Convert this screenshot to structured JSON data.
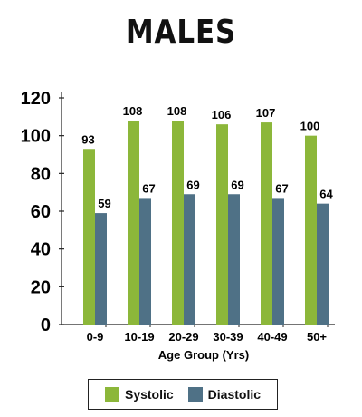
{
  "chart_data": {
    "type": "bar",
    "title": "MALES",
    "xlabel": "Age Group (Yrs)",
    "ylabel": "",
    "ylim": [
      0,
      120
    ],
    "yticks": [
      0,
      20,
      40,
      60,
      80,
      100,
      120
    ],
    "categories": [
      "0-9",
      "10-19",
      "20-29",
      "30-39",
      "40-49",
      "50+"
    ],
    "series": [
      {
        "name": "Systolic",
        "color": "#8cb73a",
        "values": [
          93,
          108,
          108,
          106,
          107,
          100
        ]
      },
      {
        "name": "Diastolic",
        "color": "#4f7186",
        "values": [
          59,
          67,
          69,
          69,
          67,
          64
        ]
      }
    ],
    "legend_position": "bottom",
    "grid": false
  }
}
